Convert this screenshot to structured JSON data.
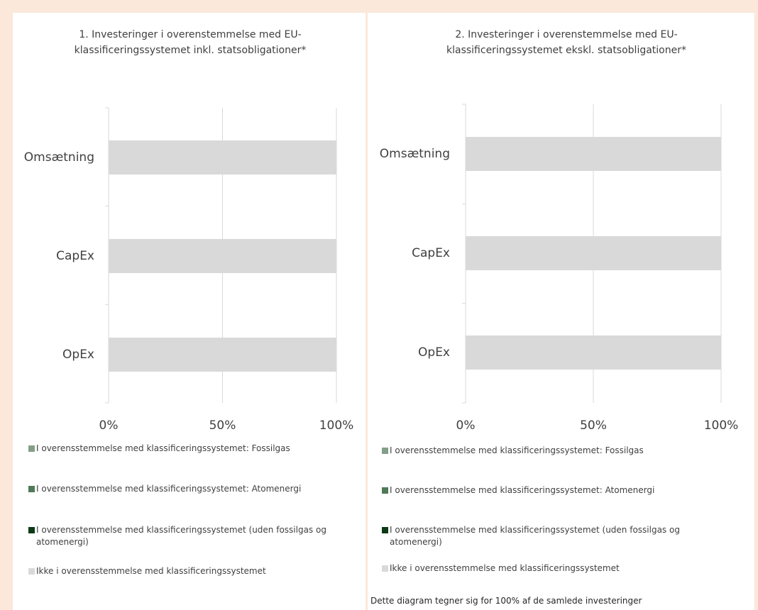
{
  "chart_data": [
    {
      "type": "bar",
      "orientation": "horizontal",
      "stacked": true,
      "title": "1. Investeringer i overenstemmelse med EU-klassificeringssystemet inkl. statsobligationer*",
      "categories": [
        "Omsætning",
        "CapEx",
        "OpEx"
      ],
      "series": [
        {
          "name": "I overensstemmelse med klassificeringssystemet: Fossilgas",
          "color": "#849f87",
          "values": [
            0,
            0,
            0
          ]
        },
        {
          "name": "I overensstemmelse med klassificeringssystemet: Atomenergi",
          "color": "#4f7a58",
          "values": [
            0,
            0,
            0
          ]
        },
        {
          "name": "I overensstemmelse med klassificeringssystemet (uden fossilgas og atomenergi)",
          "color": "#0c3a16",
          "values": [
            0,
            0,
            0
          ]
        },
        {
          "name": "Ikke i overensstemmelse med klassificeringssystemet",
          "color": "#d9d9d9",
          "values": [
            100,
            100,
            100
          ]
        }
      ],
      "xlim": [
        0,
        100
      ],
      "xticks": [
        {
          "value": 0,
          "label": "0%"
        },
        {
          "value": 50,
          "label": "50%"
        },
        {
          "value": 100,
          "label": "100%"
        }
      ],
      "grid": true
    },
    {
      "type": "bar",
      "orientation": "horizontal",
      "stacked": true,
      "title": "2. Investeringer i overenstemmelse med EU-klassificeringssystemet ekskl. statsobligationer*",
      "categories": [
        "Omsætning",
        "CapEx",
        "OpEx"
      ],
      "series": [
        {
          "name": "I overensstemmelse med klassificeringssystemet: Fossilgas",
          "color": "#849f87",
          "values": [
            0,
            0,
            0
          ]
        },
        {
          "name": "I overensstemmelse med klassificeringssystemet: Atomenergi",
          "color": "#4f7a58",
          "values": [
            0,
            0,
            0
          ]
        },
        {
          "name": "I overensstemmelse med klassificeringssystemet (uden fossilgas og atomenergi)",
          "color": "#0c3a16",
          "values": [
            0,
            0,
            0
          ]
        },
        {
          "name": "Ikke i overensstemmelse med klassificeringssystemet",
          "color": "#d9d9d9",
          "values": [
            100,
            100,
            100
          ]
        }
      ],
      "xlim": [
        0,
        100
      ],
      "xticks": [
        {
          "value": 0,
          "label": "0%"
        },
        {
          "value": 50,
          "label": "50%"
        },
        {
          "value": 100,
          "label": "100%"
        }
      ],
      "grid": true,
      "footnote": "Dette diagram tegner sig for 100% af de samlede investeringer"
    }
  ]
}
